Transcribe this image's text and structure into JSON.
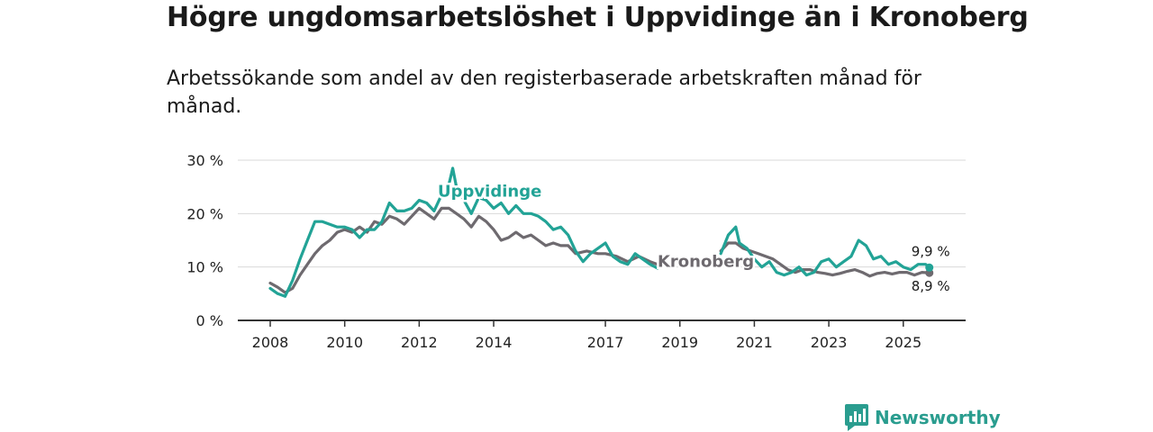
{
  "header": {
    "title": "Högre ungdomsarbetslöshet i Uppvidinge än i Kronoberg",
    "subtitle": "Arbetssökande som andel av den registerbaserade arbetskraften månad för månad."
  },
  "brand": {
    "name": "Newsworthy",
    "icon": "newsworthy-logo-icon",
    "color": "#2a9d8f"
  },
  "chart_data": {
    "type": "line",
    "title": "Högre ungdomsarbetslöshet i Uppvidinge än i Kronoberg",
    "subtitle": "Arbetssökande som andel av den registerbaserade arbetskraften månad för månad.",
    "xlabel": "",
    "ylabel": "",
    "x_range": [
      2008.0,
      2025.9
    ],
    "ylim": [
      0,
      30
    ],
    "y_ticks": [
      0,
      10,
      20,
      30
    ],
    "y_tick_labels": [
      "0 %",
      "10 %",
      "20 %",
      "30 %"
    ],
    "x_ticks": [
      2008,
      2010,
      2012,
      2014,
      2017,
      2019,
      2021,
      2023,
      2025
    ],
    "x_tick_labels": [
      "2008",
      "2010",
      "2012",
      "2014",
      "2017",
      "2019",
      "2021",
      "2023",
      "2025"
    ],
    "grid": true,
    "legend": "inline labels",
    "series": [
      {
        "name": "Kronoberg",
        "color": "#6e6a6f",
        "label": "Kronoberg",
        "end_label": "8,9 %",
        "points": [
          [
            2008.0,
            7.0
          ],
          [
            2008.2,
            6.2
          ],
          [
            2008.4,
            5.2
          ],
          [
            2008.6,
            6.0
          ],
          [
            2008.8,
            8.5
          ],
          [
            2009.0,
            10.5
          ],
          [
            2009.2,
            12.5
          ],
          [
            2009.4,
            14.0
          ],
          [
            2009.6,
            15.0
          ],
          [
            2009.8,
            16.5
          ],
          [
            2010.0,
            17.0
          ],
          [
            2010.2,
            16.5
          ],
          [
            2010.4,
            17.5
          ],
          [
            2010.6,
            16.5
          ],
          [
            2010.8,
            18.5
          ],
          [
            2011.0,
            18.0
          ],
          [
            2011.2,
            19.5
          ],
          [
            2011.4,
            19.0
          ],
          [
            2011.6,
            18.0
          ],
          [
            2011.8,
            19.5
          ],
          [
            2012.0,
            21.0
          ],
          [
            2012.2,
            20.0
          ],
          [
            2012.4,
            19.0
          ],
          [
            2012.6,
            21.0
          ],
          [
            2012.8,
            21.0
          ],
          [
            2013.0,
            20.0
          ],
          [
            2013.2,
            19.0
          ],
          [
            2013.4,
            17.5
          ],
          [
            2013.6,
            19.5
          ],
          [
            2013.8,
            18.5
          ],
          [
            2014.0,
            17.0
          ],
          [
            2014.2,
            15.0
          ],
          [
            2014.4,
            15.5
          ],
          [
            2014.6,
            16.5
          ],
          [
            2014.8,
            15.5
          ],
          [
            2015.0,
            16.0
          ],
          [
            2015.2,
            15.0
          ],
          [
            2015.4,
            14.0
          ],
          [
            2015.6,
            14.5
          ],
          [
            2015.8,
            14.0
          ],
          [
            2016.0,
            14.0
          ],
          [
            2016.2,
            12.5
          ],
          [
            2016.5,
            13.0
          ],
          [
            2016.8,
            12.5
          ],
          [
            2017.0,
            12.5
          ],
          [
            2017.3,
            12.0
          ],
          [
            2017.6,
            11.0
          ],
          [
            2017.9,
            12.0
          ],
          [
            2018.2,
            11.0
          ],
          [
            2018.4,
            10.5
          ],
          [
            2020.1,
            13.0
          ],
          [
            2020.3,
            14.5
          ],
          [
            2020.5,
            14.5
          ],
          [
            2020.7,
            13.5
          ],
          [
            2020.9,
            13.0
          ],
          [
            2021.1,
            12.5
          ],
          [
            2021.3,
            12.0
          ],
          [
            2021.5,
            11.5
          ],
          [
            2021.7,
            10.5
          ],
          [
            2021.9,
            9.5
          ],
          [
            2022.1,
            9.0
          ],
          [
            2022.3,
            9.5
          ],
          [
            2022.5,
            9.5
          ],
          [
            2022.7,
            9.0
          ],
          [
            2022.9,
            8.8
          ],
          [
            2023.1,
            8.5
          ],
          [
            2023.3,
            8.8
          ],
          [
            2023.5,
            9.2
          ],
          [
            2023.7,
            9.5
          ],
          [
            2023.9,
            9.0
          ],
          [
            2024.1,
            8.3
          ],
          [
            2024.3,
            8.8
          ],
          [
            2024.5,
            9.0
          ],
          [
            2024.7,
            8.7
          ],
          [
            2024.9,
            9.0
          ],
          [
            2025.1,
            9.0
          ],
          [
            2025.3,
            8.5
          ],
          [
            2025.5,
            9.0
          ],
          [
            2025.7,
            8.9
          ]
        ]
      },
      {
        "name": "Uppvidinge",
        "color": "#22a396",
        "label": "Uppvidinge",
        "end_label": "9,9 %",
        "points": [
          [
            2008.0,
            6.0
          ],
          [
            2008.2,
            5.0
          ],
          [
            2008.4,
            4.5
          ],
          [
            2008.6,
            7.5
          ],
          [
            2008.8,
            11.5
          ],
          [
            2009.0,
            15.0
          ],
          [
            2009.2,
            18.5
          ],
          [
            2009.4,
            18.5
          ],
          [
            2009.6,
            18.0
          ],
          [
            2009.8,
            17.5
          ],
          [
            2010.0,
            17.5
          ],
          [
            2010.2,
            17.0
          ],
          [
            2010.4,
            15.5
          ],
          [
            2010.6,
            17.0
          ],
          [
            2010.8,
            17.0
          ],
          [
            2011.0,
            18.5
          ],
          [
            2011.2,
            22.0
          ],
          [
            2011.4,
            20.5
          ],
          [
            2011.6,
            20.5
          ],
          [
            2011.8,
            21.0
          ],
          [
            2012.0,
            22.5
          ],
          [
            2012.2,
            22.0
          ],
          [
            2012.4,
            20.5
          ],
          [
            2012.6,
            23.5
          ],
          [
            2012.8,
            25.5
          ],
          [
            2012.9,
            28.5
          ],
          [
            2013.0,
            25.0
          ],
          [
            2013.2,
            22.5
          ],
          [
            2013.4,
            20.0
          ],
          [
            2013.6,
            23.0
          ],
          [
            2013.8,
            22.5
          ],
          [
            2014.0,
            21.0
          ],
          [
            2014.2,
            22.0
          ],
          [
            2014.4,
            20.0
          ],
          [
            2014.6,
            21.5
          ],
          [
            2014.8,
            20.0
          ],
          [
            2015.0,
            20.0
          ],
          [
            2015.2,
            19.5
          ],
          [
            2015.4,
            18.5
          ],
          [
            2015.6,
            17.0
          ],
          [
            2015.8,
            17.5
          ],
          [
            2016.0,
            16.0
          ],
          [
            2016.2,
            13.0
          ],
          [
            2016.4,
            11.0
          ],
          [
            2016.6,
            12.5
          ],
          [
            2016.8,
            13.5
          ],
          [
            2017.0,
            14.5
          ],
          [
            2017.2,
            12.0
          ],
          [
            2017.4,
            11.0
          ],
          [
            2017.6,
            10.5
          ],
          [
            2017.8,
            12.5
          ],
          [
            2018.0,
            11.5
          ],
          [
            2018.2,
            10.5
          ],
          [
            2018.4,
            9.8
          ],
          [
            2020.1,
            12.5
          ],
          [
            2020.3,
            16.0
          ],
          [
            2020.5,
            17.5
          ],
          [
            2020.6,
            14.5
          ],
          [
            2020.8,
            13.5
          ],
          [
            2021.0,
            11.5
          ],
          [
            2021.2,
            10.0
          ],
          [
            2021.4,
            11.0
          ],
          [
            2021.6,
            9.0
          ],
          [
            2021.8,
            8.5
          ],
          [
            2022.0,
            9.0
          ],
          [
            2022.2,
            10.0
          ],
          [
            2022.4,
            8.5
          ],
          [
            2022.6,
            9.0
          ],
          [
            2022.8,
            11.0
          ],
          [
            2023.0,
            11.5
          ],
          [
            2023.2,
            10.0
          ],
          [
            2023.4,
            11.0
          ],
          [
            2023.6,
            12.0
          ],
          [
            2023.8,
            15.0
          ],
          [
            2024.0,
            14.0
          ],
          [
            2024.2,
            11.5
          ],
          [
            2024.4,
            12.0
          ],
          [
            2024.6,
            10.5
          ],
          [
            2024.8,
            11.0
          ],
          [
            2025.0,
            10.0
          ],
          [
            2025.2,
            9.5
          ],
          [
            2025.4,
            10.5
          ],
          [
            2025.6,
            10.5
          ],
          [
            2025.7,
            9.9
          ]
        ]
      }
    ]
  }
}
